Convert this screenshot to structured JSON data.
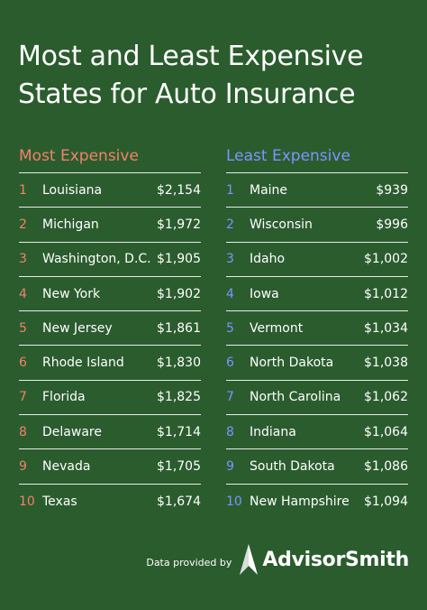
{
  "title": {
    "line1": "Most and Least Expensive",
    "line2": "States for Auto Insurance"
  },
  "colors": {
    "background": "#2b5c2e",
    "most_accent": "#f0826a",
    "least_accent": "#7f93ff",
    "text": "#ffffff"
  },
  "most_expensive": {
    "heading": "Most Expensive",
    "rows": [
      {
        "rank": "1",
        "state": "Louisiana",
        "cost": "$2,154"
      },
      {
        "rank": "2",
        "state": "Michigan",
        "cost": "$1,972"
      },
      {
        "rank": "3",
        "state": "Washington, D.C.",
        "cost": "$1,905"
      },
      {
        "rank": "4",
        "state": "New York",
        "cost": "$1,902"
      },
      {
        "rank": "5",
        "state": "New Jersey",
        "cost": "$1,861"
      },
      {
        "rank": "6",
        "state": "Rhode Island",
        "cost": "$1,830"
      },
      {
        "rank": "7",
        "state": "Florida",
        "cost": "$1,825"
      },
      {
        "rank": "8",
        "state": "Delaware",
        "cost": "$1,714"
      },
      {
        "rank": "9",
        "state": "Nevada",
        "cost": "$1,705"
      },
      {
        "rank": "10",
        "state": "Texas",
        "cost": "$1,674"
      }
    ]
  },
  "least_expensive": {
    "heading": "Least Expensive",
    "rows": [
      {
        "rank": "1",
        "state": "Maine",
        "cost": "$939"
      },
      {
        "rank": "2",
        "state": "Wisconsin",
        "cost": "$996"
      },
      {
        "rank": "3",
        "state": "Idaho",
        "cost": "$1,002"
      },
      {
        "rank": "4",
        "state": "Iowa",
        "cost": "$1,012"
      },
      {
        "rank": "5",
        "state": "Vermont",
        "cost": "$1,034"
      },
      {
        "rank": "6",
        "state": "North Dakota",
        "cost": "$1,038"
      },
      {
        "rank": "7",
        "state": "North Carolina",
        "cost": "$1,062"
      },
      {
        "rank": "8",
        "state": "Indiana",
        "cost": "$1,064"
      },
      {
        "rank": "9",
        "state": "South Dakota",
        "cost": "$1,086"
      },
      {
        "rank": "10",
        "state": "New Hampshire",
        "cost": "$1,094"
      }
    ]
  },
  "footer": {
    "provided_by": "Data provided by",
    "brand": "AdvisorSmith",
    "logo_icon": "advisorsmith-logo-icon"
  }
}
